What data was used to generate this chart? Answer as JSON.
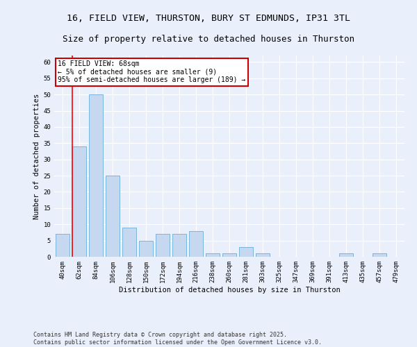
{
  "title_line1": "16, FIELD VIEW, THURSTON, BURY ST EDMUNDS, IP31 3TL",
  "title_line2": "Size of property relative to detached houses in Thurston",
  "xlabel": "Distribution of detached houses by size in Thurston",
  "ylabel": "Number of detached properties",
  "categories": [
    "40sqm",
    "62sqm",
    "84sqm",
    "106sqm",
    "128sqm",
    "150sqm",
    "172sqm",
    "194sqm",
    "216sqm",
    "238sqm",
    "260sqm",
    "281sqm",
    "303sqm",
    "325sqm",
    "347sqm",
    "369sqm",
    "391sqm",
    "413sqm",
    "435sqm",
    "457sqm",
    "479sqm"
  ],
  "values": [
    7,
    34,
    50,
    25,
    9,
    5,
    7,
    7,
    8,
    1,
    1,
    3,
    1,
    0,
    0,
    0,
    0,
    1,
    0,
    1,
    0
  ],
  "bar_color": "#c5d8f0",
  "bar_edge_color": "#6baed6",
  "background_color": "#eaf0fb",
  "grid_color": "#ffffff",
  "red_line_index": 1,
  "annotation_text": "16 FIELD VIEW: 68sqm\n← 5% of detached houses are smaller (9)\n95% of semi-detached houses are larger (189) →",
  "annotation_box_color": "#ffffff",
  "annotation_box_edge_color": "#cc0000",
  "ylim": [
    0,
    62
  ],
  "yticks": [
    0,
    5,
    10,
    15,
    20,
    25,
    30,
    35,
    40,
    45,
    50,
    55,
    60
  ],
  "footer_line1": "Contains HM Land Registry data © Crown copyright and database right 2025.",
  "footer_line2": "Contains public sector information licensed under the Open Government Licence v3.0.",
  "title_fontsize": 9.5,
  "axis_label_fontsize": 7.5,
  "tick_fontsize": 6.5,
  "annotation_fontsize": 7,
  "footer_fontsize": 6
}
